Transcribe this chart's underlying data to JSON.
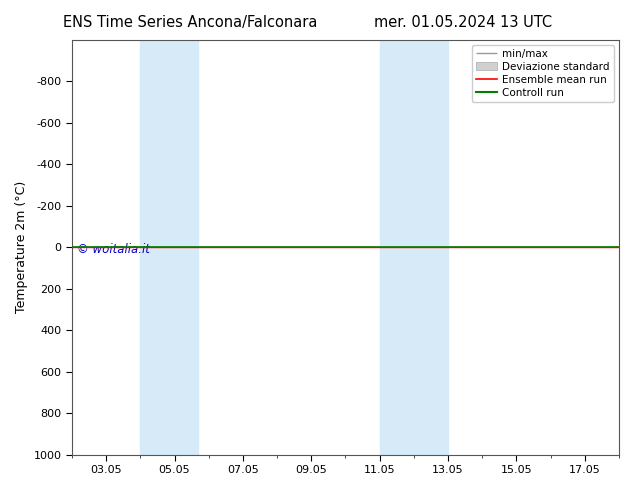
{
  "title_left": "ENS Time Series Ancona/Falconara",
  "title_right": "mer. 01.05.2024 13 UTC",
  "ylabel": "Temperature 2m (°C)",
  "ylim_top": -1000,
  "ylim_bottom": 1000,
  "yticks": [
    -800,
    -600,
    -400,
    -200,
    0,
    200,
    400,
    600,
    800,
    1000
  ],
  "xtick_labels": [
    "03.05",
    "05.05",
    "07.05",
    "09.05",
    "11.05",
    "13.05",
    "15.05",
    "17.05"
  ],
  "xtick_positions": [
    3,
    5,
    7,
    9,
    11,
    13,
    15,
    17
  ],
  "xlim": [
    2,
    18
  ],
  "shaded_bands": [
    {
      "start": 4.0,
      "end": 5.7,
      "color": "#d6eaf8"
    },
    {
      "start": 11.0,
      "end": 13.0,
      "color": "#d6eaf8"
    }
  ],
  "flat_line_y": 0,
  "control_run_color": "#008000",
  "ensemble_mean_color": "#ff0000",
  "watermark": "© woitalia.it",
  "watermark_color": "#0000cc",
  "bg_color": "#ffffff",
  "plot_bg_color": "#ffffff",
  "title_fontsize": 10.5,
  "axis_label_fontsize": 9,
  "tick_fontsize": 8,
  "legend_fontsize": 7.5,
  "line_y_value": 0
}
